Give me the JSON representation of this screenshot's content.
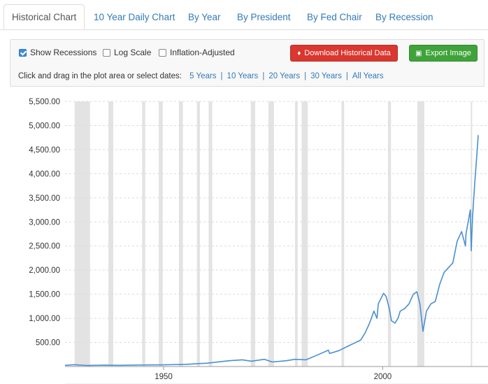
{
  "tabs": [
    {
      "label": "Historical Chart",
      "active": true
    },
    {
      "label": "10 Year Daily Chart",
      "active": false
    },
    {
      "label": "By Year",
      "active": false
    },
    {
      "label": "By President",
      "active": false
    },
    {
      "label": "By Fed Chair",
      "active": false
    },
    {
      "label": "By Recession",
      "active": false
    }
  ],
  "options": {
    "show_recessions": {
      "label": "Show Recessions",
      "checked": true
    },
    "log_scale": {
      "label": "Log Scale",
      "checked": false
    },
    "inflation_adjusted": {
      "label": "Inflation-Adjusted",
      "checked": false
    }
  },
  "buttons": {
    "download": {
      "label": "Download Historical Data",
      "icon": "download-icon",
      "color": "#d9372f"
    },
    "export": {
      "label": "Export Image",
      "icon": "image-icon",
      "color": "#3fa33a"
    }
  },
  "date_selector": {
    "prompt": "Click and drag in the plot area or select dates:",
    "ranges": [
      "5 Years",
      "10 Years",
      "20 Years",
      "30 Years",
      "All Years"
    ]
  },
  "chart_data": {
    "type": "line",
    "title": "",
    "xlabel": "",
    "ylabel": "",
    "xlim": [
      1927.5,
      2021.8
    ],
    "ylim": [
      0,
      5500
    ],
    "y_ticks": [
      500,
      1000,
      1500,
      2000,
      2500,
      3000,
      3500,
      4000,
      4500,
      5000,
      5500
    ],
    "y_tick_labels": [
      "500.00",
      "1,000.00",
      "1,500.00",
      "2,000.00",
      "2,500.00",
      "3,000.00",
      "3,500.00",
      "4,000.00",
      "4,500.00",
      "5,000.00",
      "5,500.00"
    ],
    "x_ticks": [
      1950,
      2000
    ],
    "x_tick_labels": [
      "1950",
      "2000"
    ],
    "grid": true,
    "line_color": "#4a8fd1",
    "recession_color": "#e3e3e3",
    "recessions": [
      [
        1929.7,
        1933.2
      ],
      [
        1937.4,
        1938.5
      ],
      [
        1945.1,
        1945.8
      ],
      [
        1948.9,
        1949.8
      ],
      [
        1953.5,
        1954.4
      ],
      [
        1957.6,
        1958.3
      ],
      [
        1960.3,
        1961.1
      ],
      [
        1969.9,
        1970.9
      ],
      [
        1973.9,
        1975.2
      ],
      [
        1980.0,
        1980.6
      ],
      [
        1981.5,
        1982.9
      ],
      [
        1990.6,
        1991.2
      ],
      [
        2001.2,
        2001.9
      ],
      [
        2007.9,
        2009.5
      ],
      [
        2020.1,
        2020.4
      ]
    ],
    "series": [
      {
        "x": [
          1927.5,
          1929.7,
          1932.5,
          1936.5,
          1940,
          1945,
          1950,
          1955,
          1960,
          1965,
          1968,
          1970,
          1973,
          1974.8,
          1978,
          1980,
          1982.5,
          1985,
          1987.6,
          1987.9,
          1990,
          1992,
          1995,
          1996,
          1997,
          1998,
          1998.7,
          1999,
          2000.2,
          2000.8,
          2001.5,
          2002,
          2002.8,
          2003.5,
          2004,
          2005,
          2006,
          2007,
          2007.8,
          2008.5,
          2009.2,
          2010,
          2011,
          2012,
          2013,
          2014,
          2015,
          2016,
          2017,
          2018,
          2018.9,
          2019,
          2019.5,
          2020,
          2020.2,
          2020.5,
          2021,
          2021.5,
          2021.8
        ],
        "y": [
          25,
          38,
          22,
          28,
          25,
          32,
          35,
          45,
          70,
          120,
          140,
          110,
          150,
          95,
          120,
          150,
          140,
          235,
          340,
          270,
          330,
          420,
          550,
          700,
          900,
          1150,
          1000,
          1300,
          1520,
          1450,
          1200,
          950,
          900,
          1000,
          1150,
          1200,
          1300,
          1500,
          1550,
          1300,
          730,
          1150,
          1300,
          1350,
          1700,
          1950,
          2050,
          2150,
          2600,
          2800,
          2500,
          2750,
          3000,
          3250,
          2400,
          3100,
          3800,
          4400,
          4800
        ]
      }
    ]
  }
}
